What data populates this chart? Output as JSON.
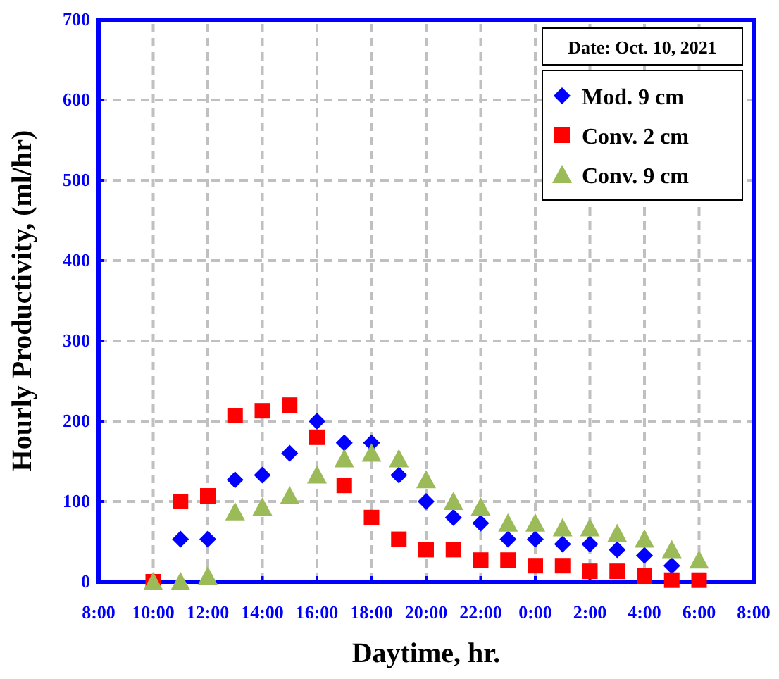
{
  "chart_data": {
    "type": "scatter",
    "xlabel": "Daytime, hr.",
    "ylabel": "Hourly Productivity, (ml/hr)",
    "annotations": [
      "Date: Oct. 10, 2021"
    ],
    "x": [
      "2021-10-10T10:00",
      "2021-10-10T11:00",
      "2021-10-10T12:00",
      "2021-10-10T13:00",
      "2021-10-10T14:00",
      "2021-10-10T15:00",
      "2021-10-10T16:00",
      "2021-10-10T17:00",
      "2021-10-10T18:00",
      "2021-10-10T19:00",
      "2021-10-10T20:00",
      "2021-10-10T21:00",
      "2021-10-10T22:00",
      "2021-10-10T23:00",
      "2021-10-11T00:00",
      "2021-10-11T01:00",
      "2021-10-11T02:00",
      "2021-10-11T03:00",
      "2021-10-11T04:00",
      "2021-10-11T05:00",
      "2021-10-11T06:00"
    ],
    "series": [
      {
        "name": "Mod. 9 cm",
        "color": "#0000ff",
        "marker": "diamond",
        "values": [
          null,
          53,
          53,
          127,
          133,
          160,
          200,
          173,
          173,
          133,
          100,
          80,
          73,
          53,
          53,
          47,
          47,
          40,
          33,
          20,
          null
        ]
      },
      {
        "name": "Conv. 2 cm",
        "color": "#ff0000",
        "marker": "square",
        "values": [
          0,
          100,
          107,
          207,
          213,
          220,
          180,
          120,
          80,
          53,
          40,
          40,
          27,
          27,
          20,
          20,
          13,
          13,
          7,
          2,
          2
        ]
      },
      {
        "name": "Conv. 9 cm",
        "color": "#9bbb59",
        "marker": "triangle",
        "values": [
          0,
          0,
          7,
          87,
          93,
          107,
          133,
          153,
          160,
          153,
          127,
          100,
          93,
          73,
          73,
          67,
          67,
          60,
          53,
          40,
          27
        ]
      }
    ],
    "xlim": [
      "2021-10-10T08:00",
      "2021-10-11T08:00"
    ],
    "xticks": [
      {
        "value": "2021-10-10T08:00",
        "label": "8:00"
      },
      {
        "value": "2021-10-10T10:00",
        "label": "10:00"
      },
      {
        "value": "2021-10-10T12:00",
        "label": "12:00"
      },
      {
        "value": "2021-10-10T14:00",
        "label": "14:00"
      },
      {
        "value": "2021-10-10T16:00",
        "label": "16:00"
      },
      {
        "value": "2021-10-10T18:00",
        "label": "18:00"
      },
      {
        "value": "2021-10-10T20:00",
        "label": "20:00"
      },
      {
        "value": "2021-10-10T22:00",
        "label": "22:00"
      },
      {
        "value": "2021-10-11T00:00",
        "label": "0:00"
      },
      {
        "value": "2021-10-11T02:00",
        "label": "2:00"
      },
      {
        "value": "2021-10-11T04:00",
        "label": "4:00"
      },
      {
        "value": "2021-10-11T06:00",
        "label": "6:00"
      },
      {
        "value": "2021-10-11T08:00",
        "label": "8:00"
      }
    ],
    "ylim": [
      0,
      700
    ],
    "yticks": [
      0,
      100,
      200,
      300,
      400,
      500,
      600,
      700
    ],
    "grid": true,
    "legend": "top right"
  }
}
